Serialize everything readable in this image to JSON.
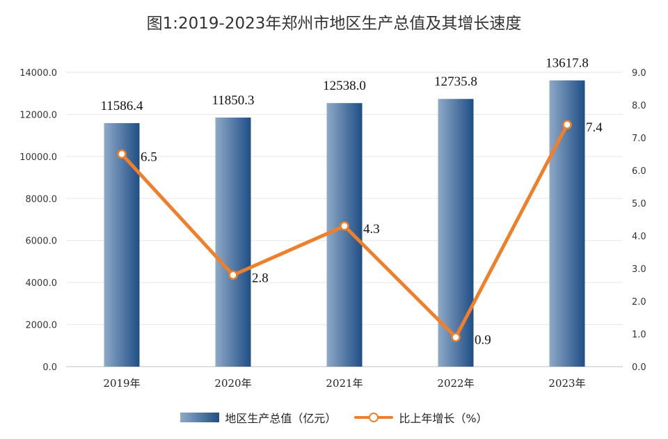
{
  "chart_data": {
    "type": "bar",
    "title": "图1:2019-2023年郑州市地区生产总值及其增长速度",
    "categories": [
      "2019年",
      "2020年",
      "2021年",
      "2022年",
      "2023年"
    ],
    "series": [
      {
        "name": "地区生产总值（亿元）",
        "type": "bar",
        "axis": "left",
        "values": [
          11586.4,
          11850.3,
          12538.0,
          12735.8,
          13617.8
        ],
        "labels": [
          "11586.4",
          "11850.3",
          "12538.0",
          "12735.8",
          "13617.8"
        ]
      },
      {
        "name": "比上年增长（%）",
        "type": "line",
        "axis": "right",
        "values": [
          6.5,
          2.8,
          4.3,
          0.9,
          7.4
        ],
        "labels": [
          "6.5",
          "2.8",
          "4.3",
          "0.9",
          "7.4"
        ]
      }
    ],
    "y_left": {
      "min": 0,
      "max": 14000,
      "ticks": [
        "0.0",
        "2000.0",
        "4000.0",
        "6000.0",
        "8000.0",
        "10000.0",
        "12000.0",
        "14000.0"
      ]
    },
    "y_right": {
      "min": 0,
      "max": 9,
      "ticks": [
        "0.0",
        "1.0",
        "2.0",
        "3.0",
        "4.0",
        "5.0",
        "6.0",
        "7.0",
        "8.0",
        "9.0"
      ]
    },
    "grid": true,
    "legend_position": "bottom",
    "colors": {
      "bar_light": "#8fa9c6",
      "bar_dark": "#1f4e86",
      "line": "#ef7f2a",
      "grid": "#e6e6e6"
    }
  }
}
